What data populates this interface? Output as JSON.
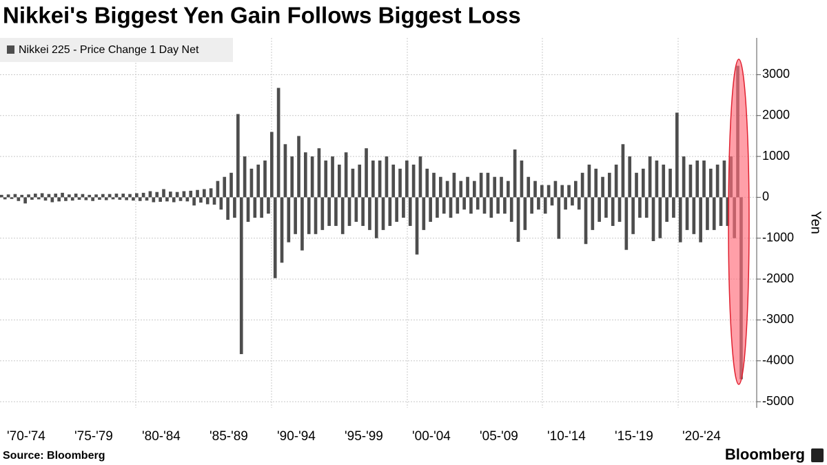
{
  "chart_data": {
    "type": "bar",
    "title": "Nikkei's Biggest Yen Gain Follows Biggest Loss",
    "source": "Source: Bloomberg",
    "brand": "Bloomberg",
    "y_label": "Yen",
    "legend_position": "top-left",
    "grid": true,
    "categories": [
      "'70-'74",
      null,
      null,
      null,
      null,
      null,
      null,
      null,
      null,
      null,
      null,
      null,
      null,
      null,
      null,
      null,
      null,
      null,
      null,
      null,
      "'75-'79",
      null,
      null,
      null,
      null,
      null,
      null,
      null,
      null,
      null,
      null,
      null,
      null,
      null,
      null,
      null,
      null,
      null,
      null,
      null,
      "'80-'84",
      null,
      null,
      null,
      null,
      null,
      null,
      null,
      null,
      null,
      null,
      null,
      null,
      null,
      null,
      null,
      null,
      null,
      null,
      null,
      "'85-'89",
      null,
      null,
      null,
      null,
      null,
      null,
      null,
      null,
      null,
      null,
      null,
      null,
      null,
      null,
      null,
      null,
      null,
      null,
      null,
      "'90-'94",
      null,
      null,
      null,
      null,
      null,
      null,
      null,
      null,
      null,
      null,
      null,
      null,
      null,
      null,
      null,
      null,
      null,
      null,
      null,
      "'95-'99",
      null,
      null,
      null,
      null,
      null,
      null,
      null,
      null,
      null,
      null,
      null,
      null,
      null,
      null,
      null,
      null,
      null,
      null,
      null,
      "'00-'04",
      null,
      null,
      null,
      null,
      null,
      null,
      null,
      null,
      null,
      null,
      null,
      null,
      null,
      null,
      null,
      null,
      null,
      null,
      null,
      "'05-'09",
      null,
      null,
      null,
      null,
      null,
      null,
      null,
      null,
      null,
      null,
      null,
      null,
      null,
      null,
      null,
      null,
      null,
      null,
      null,
      "'10-'14",
      null,
      null,
      null,
      null,
      null,
      null,
      null,
      null,
      null,
      null,
      null,
      null,
      null,
      null,
      null,
      null,
      null,
      null,
      null,
      "'15-'19",
      null,
      null,
      null,
      null,
      null,
      null,
      null,
      null,
      null,
      null,
      null,
      null,
      null,
      null,
      null,
      null,
      null,
      null,
      null,
      "'20-'24",
      null,
      null,
      null,
      null,
      null,
      null,
      null,
      null,
      null,
      null,
      null,
      null,
      null,
      null,
      null,
      null,
      null,
      null,
      null
    ],
    "series": [
      {
        "name": "Nikkei 225 - Price Change 1 Day Net",
        "color": "#4d4d4d",
        "values": [
          60,
          -50,
          70,
          -40,
          80,
          -90,
          60,
          -150,
          70,
          -60,
          90,
          -50,
          100,
          -80,
          80,
          -120,
          90,
          -100,
          110,
          -90,
          70,
          -80,
          90,
          -60,
          80,
          -70,
          60,
          -90,
          70,
          -60,
          80,
          -70,
          80,
          -50,
          90,
          -60,
          90,
          -70,
          80,
          -80,
          100,
          -90,
          110,
          -80,
          150,
          -120,
          130,
          -110,
          200,
          -100,
          140,
          -120,
          130,
          -90,
          150,
          -100,
          160,
          -200,
          180,
          -130,
          200,
          -170,
          220,
          -180,
          400,
          -300,
          500,
          -550,
          600,
          -500,
          2037,
          -3836,
          1000,
          -600,
          700,
          -500,
          800,
          -500,
          900,
          -400,
          1600,
          -1978,
          2677,
          -1600,
          1300,
          -1100,
          1000,
          -900,
          1500,
          -1300,
          1100,
          -900,
          1000,
          -900,
          1200,
          -800,
          900,
          -700,
          1000,
          -700,
          800,
          -900,
          1100,
          -700,
          700,
          -600,
          800,
          -700,
          1200,
          -800,
          900,
          -1000,
          900,
          -800,
          1000,
          -700,
          800,
          -600,
          700,
          -500,
          900,
          -700,
          800,
          -1400,
          1000,
          -800,
          700,
          -600,
          600,
          -500,
          500,
          -400,
          400,
          -500,
          600,
          -400,
          400,
          -300,
          500,
          -400,
          400,
          -300,
          600,
          -400,
          600,
          -500,
          500,
          -400,
          500,
          -400,
          400,
          -600,
          1170,
          -1090,
          900,
          -800,
          500,
          -400,
          400,
          -300,
          300,
          -400,
          300,
          -200,
          400,
          -1015,
          300,
          -300,
          300,
          -200,
          400,
          -300,
          600,
          -1143,
          800,
          -800,
          700,
          -600,
          500,
          -500,
          600,
          -700,
          800,
          -600,
          1300,
          -1286,
          1000,
          -900,
          600,
          -500,
          700,
          -500,
          1000,
          -1071,
          900,
          -1000,
          800,
          -600,
          700,
          -500,
          2071,
          -1100,
          1000,
          -800,
          800,
          -900,
          900,
          -1100,
          900,
          -800,
          700,
          -800,
          800,
          -700,
          900,
          -700,
          1000,
          -1000,
          3217,
          -4451
        ]
      }
    ],
    "ylim": [
      -5150,
      3900
    ],
    "yticks": [
      -5000,
      -4000,
      -3000,
      -2000,
      -1000,
      0,
      1000,
      2000,
      3000
    ]
  }
}
